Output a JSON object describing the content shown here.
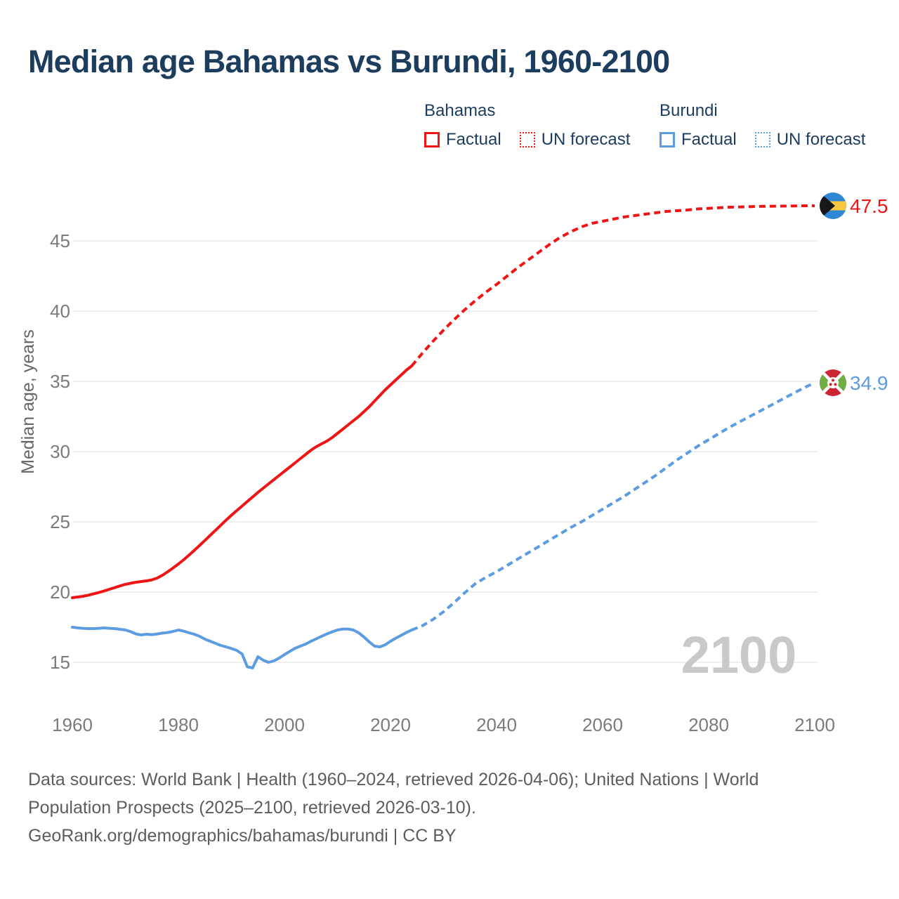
{
  "title": "Median age Bahamas vs Burundi, 1960-2100",
  "colors": {
    "heading": "#1d3d5f",
    "bahamas": "#f01414",
    "burundi": "#5c9ce0",
    "tick_labels": "#7b7b7b",
    "gridlines": "#ececec",
    "watermark": "#c9c9c9",
    "footer_text": "#5d5d5d",
    "flag_bahamas": {
      "blue": "#2e86d5",
      "gold": "#fac840",
      "black": "#17171a"
    },
    "flag_burundi": {
      "red": "#ce2334",
      "green": "#6fae44",
      "white": "#ffffff"
    }
  },
  "legend": {
    "groups": [
      {
        "label": "Bahamas",
        "color": "#f01414",
        "items": [
          {
            "label": "Factual",
            "style": "solid"
          },
          {
            "label": "UN forecast",
            "style": "dotted"
          }
        ]
      },
      {
        "label": "Burundi",
        "color": "#5c9ce0",
        "items": [
          {
            "label": "Factual",
            "style": "solid"
          },
          {
            "label": "UN forecast",
            "style": "dotted"
          }
        ]
      }
    ]
  },
  "chart_data": {
    "type": "line",
    "title": "Median age Bahamas vs Burundi, 1960-2100",
    "xlabel": "",
    "ylabel": "Median age, years",
    "xlim": [
      1960,
      2100
    ],
    "ylim": [
      13,
      49
    ],
    "x_ticks": [
      1960,
      1980,
      2000,
      2020,
      2040,
      2060,
      2080,
      2100
    ],
    "y_ticks": [
      15,
      20,
      25,
      30,
      35,
      40,
      45
    ],
    "grid": "horizontal",
    "legend_position": "top",
    "watermark": "2100",
    "series": [
      {
        "name": "Bahamas Factual",
        "id": "bahamas-factual",
        "color": "#f01414",
        "dash": false,
        "x_start": 1960,
        "x_step": 1,
        "values": [
          19.6,
          19.65,
          19.7,
          19.78,
          19.87,
          19.97,
          20.08,
          20.2,
          20.32,
          20.44,
          20.55,
          20.63,
          20.7,
          20.75,
          20.8,
          20.87,
          21.0,
          21.2,
          21.45,
          21.72,
          22.0,
          22.3,
          22.63,
          22.97,
          23.32,
          23.68,
          24.04,
          24.4,
          24.76,
          25.12,
          25.47,
          25.8,
          26.12,
          26.45,
          26.77,
          27.1,
          27.4,
          27.7,
          28.0,
          28.3,
          28.6,
          28.9,
          29.2,
          29.5,
          29.8,
          30.1,
          30.35,
          30.55,
          30.75,
          31.0,
          31.3,
          31.6,
          31.9,
          32.2,
          32.5,
          32.85,
          33.2,
          33.6,
          34.0,
          34.4,
          34.75,
          35.1,
          35.45,
          35.8,
          36.1
        ]
      },
      {
        "name": "Bahamas UN forecast",
        "id": "bahamas-forecast",
        "color": "#f01414",
        "dash": true,
        "x_start": 2024,
        "x_step": 2,
        "values": [
          36.1,
          37.0,
          37.85,
          38.65,
          39.4,
          40.1,
          40.75,
          41.35,
          41.9,
          42.5,
          43.1,
          43.65,
          44.2,
          44.75,
          45.25,
          45.65,
          46.0,
          46.25,
          46.4,
          46.55,
          46.7,
          46.8,
          46.9,
          47.0,
          47.1,
          47.15,
          47.2,
          47.28,
          47.32,
          47.36,
          47.4,
          47.42,
          47.44,
          47.46,
          47.47,
          47.48,
          47.49,
          47.5,
          47.5
        ]
      },
      {
        "name": "Burundi Factual",
        "id": "burundi-factual",
        "color": "#5c9ce0",
        "dash": false,
        "x_start": 1960,
        "x_step": 1,
        "values": [
          17.5,
          17.45,
          17.42,
          17.4,
          17.4,
          17.42,
          17.45,
          17.42,
          17.4,
          17.35,
          17.3,
          17.18,
          17.02,
          16.95,
          17.0,
          16.97,
          17.02,
          17.08,
          17.12,
          17.2,
          17.3,
          17.22,
          17.1,
          17.0,
          16.85,
          16.65,
          16.5,
          16.35,
          16.2,
          16.1,
          15.98,
          15.85,
          15.6,
          14.68,
          14.6,
          15.4,
          15.15,
          15.0,
          15.1,
          15.3,
          15.55,
          15.78,
          16.0,
          16.15,
          16.3,
          16.5,
          16.67,
          16.85,
          17.02,
          17.17,
          17.3,
          17.37,
          17.37,
          17.3,
          17.1,
          16.8,
          16.45,
          16.15,
          16.1,
          16.25,
          16.5,
          16.72,
          16.92,
          17.12,
          17.3
        ]
      },
      {
        "name": "Burundi UN forecast",
        "id": "burundi-forecast",
        "color": "#5c9ce0",
        "dash": true,
        "x_start": 2024,
        "x_step": 2,
        "values": [
          17.3,
          17.6,
          18.05,
          18.6,
          19.25,
          19.95,
          20.6,
          21.05,
          21.45,
          21.9,
          22.35,
          22.8,
          23.25,
          23.7,
          24.15,
          24.6,
          25.0,
          25.45,
          25.9,
          26.35,
          26.8,
          27.3,
          27.8,
          28.3,
          28.85,
          29.4,
          29.9,
          30.4,
          30.85,
          31.3,
          31.75,
          32.15,
          32.55,
          32.95,
          33.35,
          33.75,
          34.15,
          34.55,
          34.9
        ]
      }
    ],
    "end_labels": [
      {
        "series": "Bahamas",
        "flag": "bahamas",
        "year": 2100,
        "value": 47.5,
        "text": "47.5",
        "color": "#f01414"
      },
      {
        "series": "Burundi",
        "flag": "burundi",
        "year": 2100,
        "value": 34.9,
        "text": "34.9",
        "color": "#5c9ce0"
      }
    ]
  },
  "footer": {
    "lines": [
      "Data sources: World Bank | Health (1960–2024, retrieved 2026-04-06); United Nations | World",
      "Population Prospects (2025–2100, retrieved 2026-03-10).",
      "GeoRank.org/demographics/bahamas/burundi | CC BY"
    ]
  }
}
